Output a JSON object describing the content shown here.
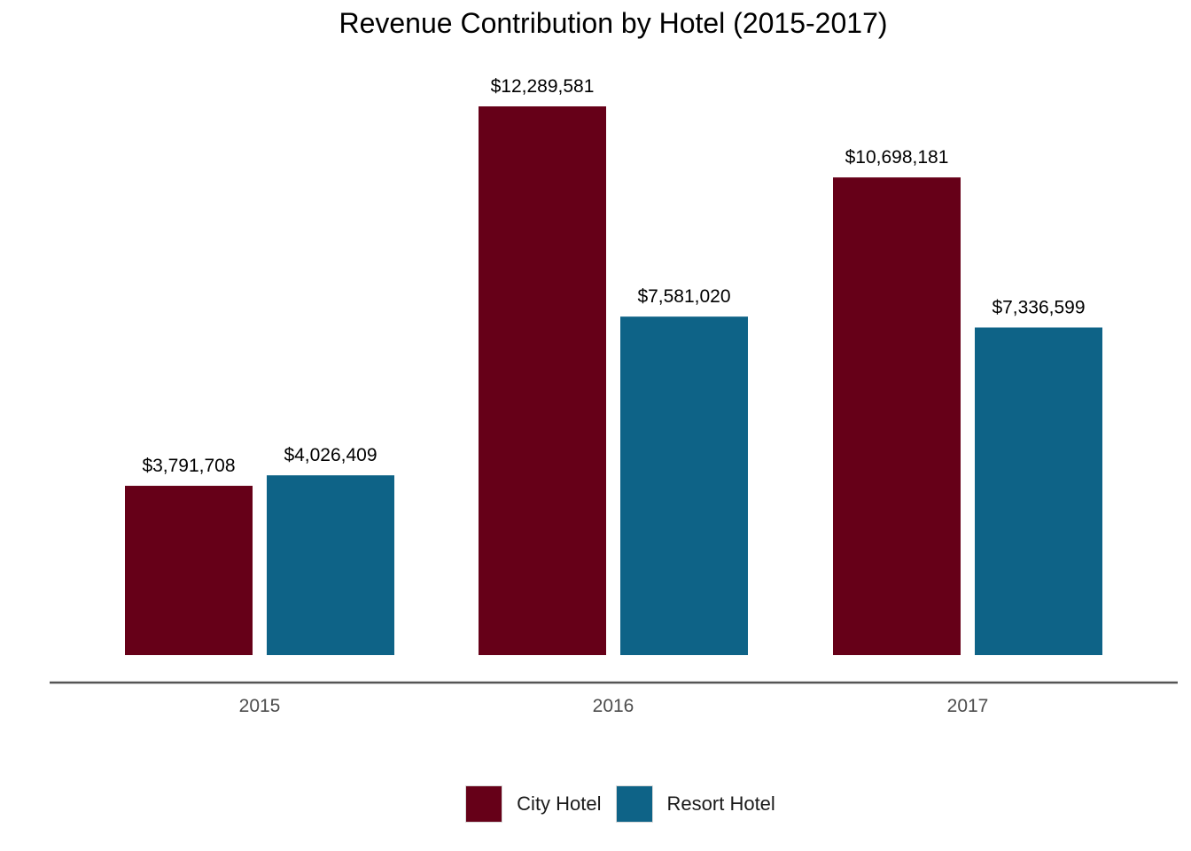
{
  "chart_data": {
    "type": "bar",
    "title": "Revenue Contribution by Hotel (2015-2017)",
    "xlabel": "",
    "ylabel": "",
    "categories": [
      "2015",
      "2016",
      "2017"
    ],
    "series": [
      {
        "name": "City Hotel",
        "color": "#660018",
        "values": [
          3791708,
          12289581,
          10698181
        ],
        "labels": [
          "$3,791,708",
          "$12,289,581",
          "$10,698,181"
        ]
      },
      {
        "name": "Resort Hotel",
        "color": "#0e6387",
        "values": [
          4026409,
          7581020,
          7336599
        ],
        "labels": [
          "$4,026,409",
          "$7,581,020",
          "$7,336,599"
        ]
      }
    ],
    "ylim": [
      0,
      12289581
    ],
    "grid": false,
    "legend": "bottom"
  }
}
